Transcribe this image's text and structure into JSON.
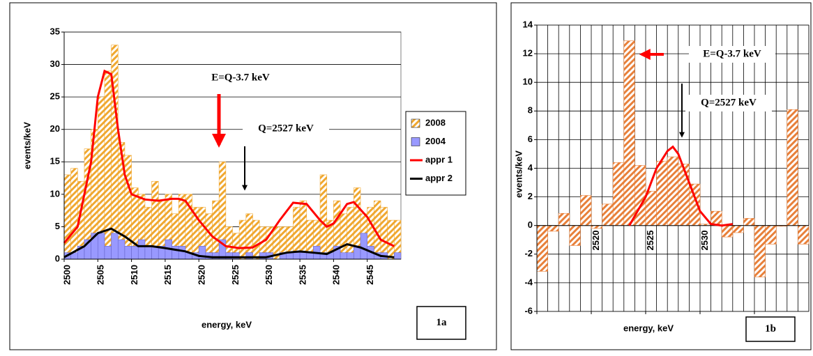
{
  "chart_data": [
    {
      "type": "histogram",
      "panel_label": "1a",
      "x_label": "energy, keV",
      "y_label": "events/keV",
      "bins": [
        2500,
        2501,
        2502,
        2503,
        2504,
        2505,
        2506,
        2507,
        2508,
        2509,
        2510,
        2511,
        2512,
        2513,
        2514,
        2515,
        2516,
        2517,
        2518,
        2519,
        2520,
        2521,
        2522,
        2523,
        2524,
        2525,
        2526,
        2527,
        2528,
        2529,
        2530,
        2531,
        2532,
        2533,
        2534,
        2535,
        2536,
        2537,
        2538,
        2539,
        2540,
        2541,
        2542,
        2543,
        2544,
        2545,
        2546,
        2547,
        2548,
        2549,
        2550
      ],
      "series": [
        {
          "name": "2008",
          "color": "#f0a830",
          "pattern": "hatch",
          "values": [
            13,
            14,
            12,
            17,
            20,
            25,
            29,
            33,
            18,
            16,
            11,
            10,
            8,
            12,
            9,
            10,
            7,
            10,
            10,
            8,
            8,
            7,
            9,
            15,
            5,
            4,
            6,
            7,
            6,
            5,
            5,
            5,
            5,
            5,
            8,
            9,
            6,
            6,
            13,
            6,
            9,
            7,
            8,
            11,
            7,
            8,
            9,
            8,
            6,
            6
          ]
        },
        {
          "name": "2004",
          "color": "#9999ff",
          "pattern": "solid",
          "values": [
            1,
            1,
            2,
            3,
            4,
            4,
            2,
            4,
            3,
            2,
            2,
            3,
            2,
            2,
            2,
            3,
            2,
            2,
            1,
            1,
            2,
            1,
            1,
            3,
            1,
            1,
            0,
            1,
            0,
            1,
            1,
            0,
            1,
            1,
            1,
            1,
            1,
            2,
            1,
            1,
            2,
            1,
            1,
            2,
            4,
            2,
            1,
            1,
            0,
            1
          ]
        }
      ],
      "lines": [
        {
          "name": "appr 1",
          "color": "#ff0000",
          "x": [
            2500,
            2502,
            2504,
            2505,
            2506,
            2507,
            2508,
            2509,
            2510,
            2512,
            2514,
            2516,
            2517,
            2518,
            2520,
            2522,
            2524,
            2526,
            2528,
            2530,
            2532,
            2534,
            2536,
            2538,
            2539,
            2540,
            2542,
            2543,
            2545,
            2547,
            2549
          ],
          "values": [
            2.5,
            5,
            15,
            25,
            29,
            28.5,
            20,
            13,
            10,
            9.2,
            9,
            9.3,
            9.3,
            9,
            6,
            3.5,
            2,
            1.7,
            1.8,
            3,
            6,
            8.7,
            8.5,
            6,
            5,
            5.5,
            8.5,
            8.8,
            6.5,
            3,
            2
          ]
        },
        {
          "name": "appr 2",
          "color": "#000000",
          "x": [
            2500,
            2503,
            2505,
            2507,
            2509,
            2511,
            2513,
            2515,
            2518,
            2520,
            2522,
            2530,
            2533,
            2535,
            2537,
            2539,
            2542,
            2544,
            2547,
            2549
          ],
          "values": [
            0.3,
            2,
            4,
            4.7,
            3.5,
            2,
            2,
            1.7,
            1.2,
            0.5,
            0.3,
            0.3,
            1,
            1.2,
            1,
            0.8,
            2.3,
            1.8,
            0.5,
            0.3
          ]
        }
      ],
      "xlim": [
        2500,
        2550
      ],
      "xticks": [
        2500,
        2505,
        2510,
        2515,
        2520,
        2525,
        2530,
        2535,
        2540,
        2545
      ],
      "ylim": [
        0,
        35
      ],
      "yticks": [
        0,
        5,
        10,
        15,
        20,
        25,
        30,
        35
      ],
      "grid": "y",
      "annotations": [
        "E=Q-3.7 keV",
        "Q=2527 keV"
      ],
      "legend": "right"
    },
    {
      "type": "histogram",
      "panel_label": "1b",
      "x_label": "energy, keV",
      "y_label": "events/keV",
      "bins": [
        2515,
        2516,
        2517,
        2518,
        2519,
        2520,
        2521,
        2522,
        2523,
        2524,
        2525,
        2526,
        2527,
        2528,
        2529,
        2530,
        2531,
        2532,
        2533,
        2534,
        2535,
        2536,
        2537,
        2538,
        2539,
        2540
      ],
      "series": [
        {
          "color": "#e8803a",
          "pattern": "hatch",
          "values": [
            -3.2,
            -0.4,
            0.85,
            -1.4,
            2.1,
            -0.2,
            1.5,
            4.4,
            12.9,
            4.2,
            2.4,
            4.5,
            4.8,
            4.3,
            2.9,
            0.1,
            1,
            -0.8,
            -0.5,
            0.5,
            -3.6,
            -1.3,
            -0.05,
            8.1,
            -1.3
          ]
        }
      ],
      "lines": [
        {
          "color": "#ff0000",
          "x": [
            2523.5,
            2525,
            2526,
            2527,
            2527.5,
            2528,
            2529,
            2530,
            2531,
            2532,
            2533
          ],
          "values": [
            0,
            2,
            4,
            5.2,
            5.5,
            5,
            3,
            1,
            0.1,
            0,
            0.1
          ]
        }
      ],
      "xlim": [
        2515,
        2540
      ],
      "xticks": [
        2515,
        2520,
        2525,
        2530,
        2535
      ],
      "ylim": [
        -6,
        14
      ],
      "yticks": [
        -6,
        -4,
        -2,
        0,
        2,
        4,
        6,
        8,
        10,
        12,
        14
      ],
      "grid": "xy",
      "annotations": [
        "E=Q-3.7 keV",
        "Q=2527 keV"
      ]
    }
  ]
}
